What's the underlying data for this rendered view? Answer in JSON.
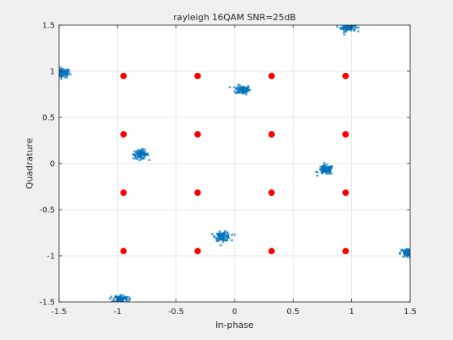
{
  "chart_data": {
    "type": "scatter",
    "title": "rayleigh 16QAM SNR=25dB",
    "xlabel": "In-phase",
    "ylabel": "Quadrature",
    "xlim": [
      -1.5,
      1.5
    ],
    "ylim": [
      -1.5,
      1.5
    ],
    "grid": true,
    "x_ticks": [
      -1.5,
      -1,
      -0.5,
      0,
      0.5,
      1,
      1.5
    ],
    "y_ticks": [
      -1.5,
      -1,
      -0.5,
      0,
      0.5,
      1,
      1.5
    ],
    "x_tick_labels": [
      "-1.5",
      "-1",
      "-0.5",
      "0",
      "0.5",
      "1",
      "1.5"
    ],
    "y_tick_labels": [
      "-1.5",
      "-1",
      "-0.5",
      "0",
      "0.5",
      "1",
      "1.5"
    ],
    "series": [
      {
        "role": "received",
        "marker": "x",
        "color": "#0072bd",
        "spread": 0.032,
        "points_per_cluster": 90,
        "cluster_centers": [
          [
            -1.47,
            0.98
          ],
          [
            0.07,
            0.8
          ],
          [
            0.97,
            1.48
          ],
          [
            -0.8,
            0.1
          ],
          [
            0.78,
            -0.07
          ],
          [
            -0.1,
            -0.79
          ],
          [
            1.48,
            -0.97
          ],
          [
            -0.97,
            -1.47
          ]
        ]
      },
      {
        "role": "reference",
        "marker": "filled-circle",
        "color": "#ff0000",
        "points": [
          [
            -0.9487,
            0.9487
          ],
          [
            -0.3162,
            0.9487
          ],
          [
            0.3162,
            0.9487
          ],
          [
            0.9487,
            0.9487
          ],
          [
            -0.9487,
            0.3162
          ],
          [
            -0.3162,
            0.3162
          ],
          [
            0.3162,
            0.3162
          ],
          [
            0.9487,
            0.3162
          ],
          [
            -0.9487,
            -0.3162
          ],
          [
            -0.3162,
            -0.3162
          ],
          [
            0.3162,
            -0.3162
          ],
          [
            0.9487,
            -0.3162
          ],
          [
            -0.9487,
            -0.9487
          ],
          [
            -0.3162,
            -0.9487
          ],
          [
            0.3162,
            -0.9487
          ],
          [
            0.9487,
            -0.9487
          ]
        ]
      }
    ]
  }
}
